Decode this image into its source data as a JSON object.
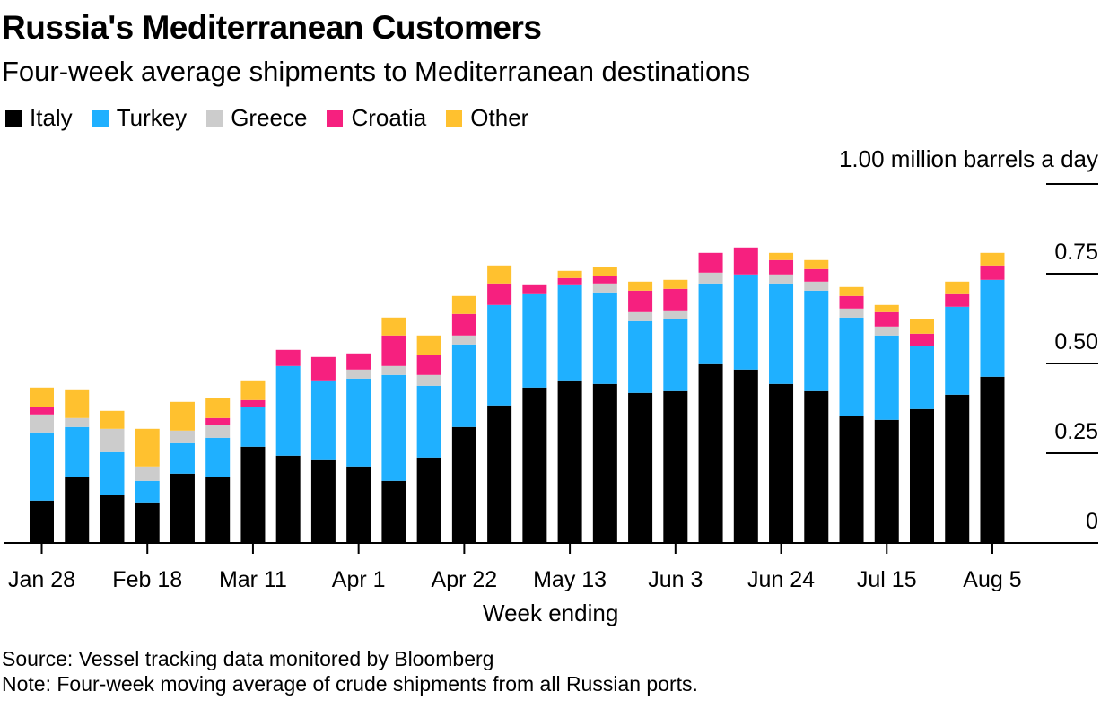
{
  "header": {
    "title": "Russia's Mediterranean Customers",
    "subtitle": "Four-week average shipments to Mediterranean destinations"
  },
  "footer": {
    "source": "Source: Vessel tracking data monitored by Bloomberg",
    "note": "Note: Four-week moving average of crude shipments from all Russian ports."
  },
  "chart_data": {
    "type": "bar",
    "stacked": true,
    "title": "Russia's Mediterranean Customers",
    "subtitle": "Four-week average shipments to Mediterranean destinations",
    "xlabel": "Week ending",
    "ylabel": "million barrels a day",
    "unit_label": "1.00 million barrels a day",
    "ylim": [
      0,
      1.0
    ],
    "yticks": [
      0,
      0.25,
      0.5,
      0.75,
      1.0
    ],
    "ytick_labels": [
      "0",
      "0.25",
      "0.50",
      "0.75",
      ""
    ],
    "grid": false,
    "legend_position": "top-left",
    "categories": [
      "Jan 28",
      "Feb 4",
      "Feb 11",
      "Feb 18",
      "Feb 25",
      "Mar 4",
      "Mar 11",
      "Mar 18",
      "Mar 25",
      "Apr 1",
      "Apr 8",
      "Apr 15",
      "Apr 22",
      "Apr 29",
      "May 6",
      "May 13",
      "May 20",
      "May 27",
      "Jun 3",
      "Jun 10",
      "Jun 17",
      "Jun 24",
      "Jul 1",
      "Jul 8",
      "Jul 15",
      "Jul 22",
      "Jul 29",
      "Aug 5"
    ],
    "xtick_labels": [
      "Jan 28",
      "Feb 18",
      "Mar 11",
      "Apr 1",
      "Apr 22",
      "May 13",
      "Jun 3",
      "Jun 24",
      "Jul 15",
      "Aug 5"
    ],
    "xtick_every": 3,
    "series": [
      {
        "name": "Italy",
        "color": "#000000",
        "values": [
          0.118,
          0.183,
          0.133,
          0.113,
          0.193,
          0.183,
          0.268,
          0.243,
          0.233,
          0.213,
          0.173,
          0.238,
          0.323,
          0.383,
          0.433,
          0.453,
          0.443,
          0.418,
          0.423,
          0.498,
          0.483,
          0.443,
          0.423,
          0.353,
          0.343,
          0.373,
          0.413,
          0.463
        ]
      },
      {
        "name": "Turkey",
        "color": "#1fb0ff",
        "values": [
          0.19,
          0.14,
          0.12,
          0.06,
          0.085,
          0.11,
          0.11,
          0.25,
          0.22,
          0.245,
          0.295,
          0.2,
          0.23,
          0.28,
          0.26,
          0.265,
          0.255,
          0.2,
          0.2,
          0.225,
          0.265,
          0.28,
          0.28,
          0.275,
          0.235,
          0.175,
          0.245,
          0.27
        ]
      },
      {
        "name": "Greece",
        "color": "#cccccc",
        "values": [
          0.05,
          0.025,
          0.065,
          0.04,
          0.035,
          0.035,
          0,
          0,
          0,
          0.025,
          0.025,
          0.03,
          0.025,
          0,
          0,
          0,
          0.025,
          0.025,
          0.025,
          0.03,
          0,
          0.025,
          0.025,
          0.025,
          0.025,
          0,
          0,
          0
        ]
      },
      {
        "name": "Croatia",
        "color": "#f6207f",
        "values": [
          0.02,
          0,
          0,
          0,
          0,
          0.02,
          0.02,
          0.045,
          0.065,
          0.045,
          0.085,
          0.055,
          0.06,
          0.06,
          0.025,
          0.02,
          0.02,
          0.06,
          0.06,
          0.055,
          0.075,
          0.04,
          0.035,
          0.035,
          0.04,
          0.035,
          0.035,
          0.04
        ]
      },
      {
        "name": "Other",
        "color": "#ffc12f",
        "values": [
          0.055,
          0.08,
          0.05,
          0.105,
          0.08,
          0.055,
          0.055,
          0,
          0,
          0,
          0.05,
          0.055,
          0.05,
          0.05,
          0,
          0.02,
          0.025,
          0.025,
          0.025,
          0,
          0,
          0.02,
          0.025,
          0.025,
          0.02,
          0.04,
          0.035,
          0.035
        ]
      }
    ]
  }
}
